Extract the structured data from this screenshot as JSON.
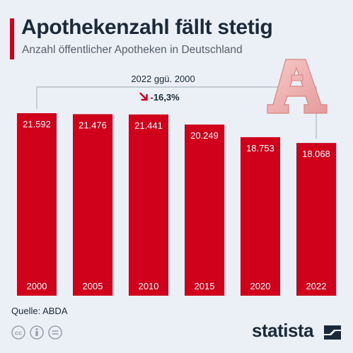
{
  "title": "Apothekenzahl fällt stetig",
  "subtitle": "Anzahl öffentlicher Apotheken in Deutschland",
  "source": "Quelle: ABDA",
  "brand": "statista",
  "comparison": {
    "label": "2022 ggü. 2000",
    "change": "-16,3%"
  },
  "colors": {
    "bar": "#d0021b",
    "background": "#eaf0f5",
    "text": "#1b2a3a"
  },
  "icons": [
    "cc-icon",
    "person-icon",
    "equal-icon",
    "pharmacy-logo-icon",
    "arrow-down-icon"
  ],
  "chart_data": {
    "type": "bar",
    "categories": [
      "2000",
      "2005",
      "2010",
      "2015",
      "2020",
      "2022"
    ],
    "values": [
      21592,
      21476,
      21441,
      20249,
      18753,
      18068
    ],
    "value_labels": [
      "21.592",
      "21.476",
      "21.441",
      "20.249",
      "18.753",
      "18.068"
    ],
    "title": "Apothekenzahl fällt stetig",
    "subtitle": "Anzahl öffentlicher Apotheken in Deutschland",
    "xlabel": "",
    "ylabel": "",
    "ylim": [
      0,
      21592
    ],
    "grid": false,
    "legend": "none"
  }
}
